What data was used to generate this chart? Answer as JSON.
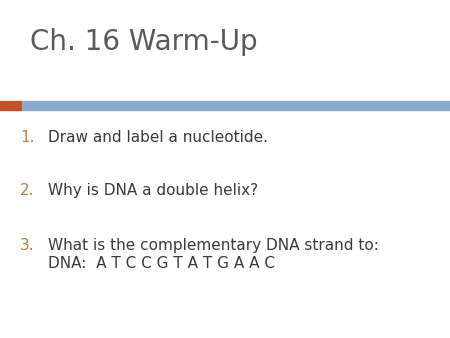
{
  "title": "Ch. 16 Warm-Up",
  "title_color": "#5a5a5a",
  "title_fontsize": 20,
  "bar_orange_color": "#c0522a",
  "bar_blue_color": "#8aacca",
  "items": [
    {
      "number": "1.",
      "text": "Draw and label a nucleotide.",
      "number_color": "#b8823a"
    },
    {
      "number": "2.",
      "text": "Why is DNA a double helix?",
      "number_color": "#b8823a"
    },
    {
      "number": "3.",
      "text": "What is the complementary DNA strand to:",
      "number_color": "#b8823a"
    }
  ],
  "dna_line_text": "DNA:  A T C C G T A T G A A C",
  "item_fontsize": 11,
  "item_color": "#3a3a3a",
  "background_color": "#ffffff"
}
